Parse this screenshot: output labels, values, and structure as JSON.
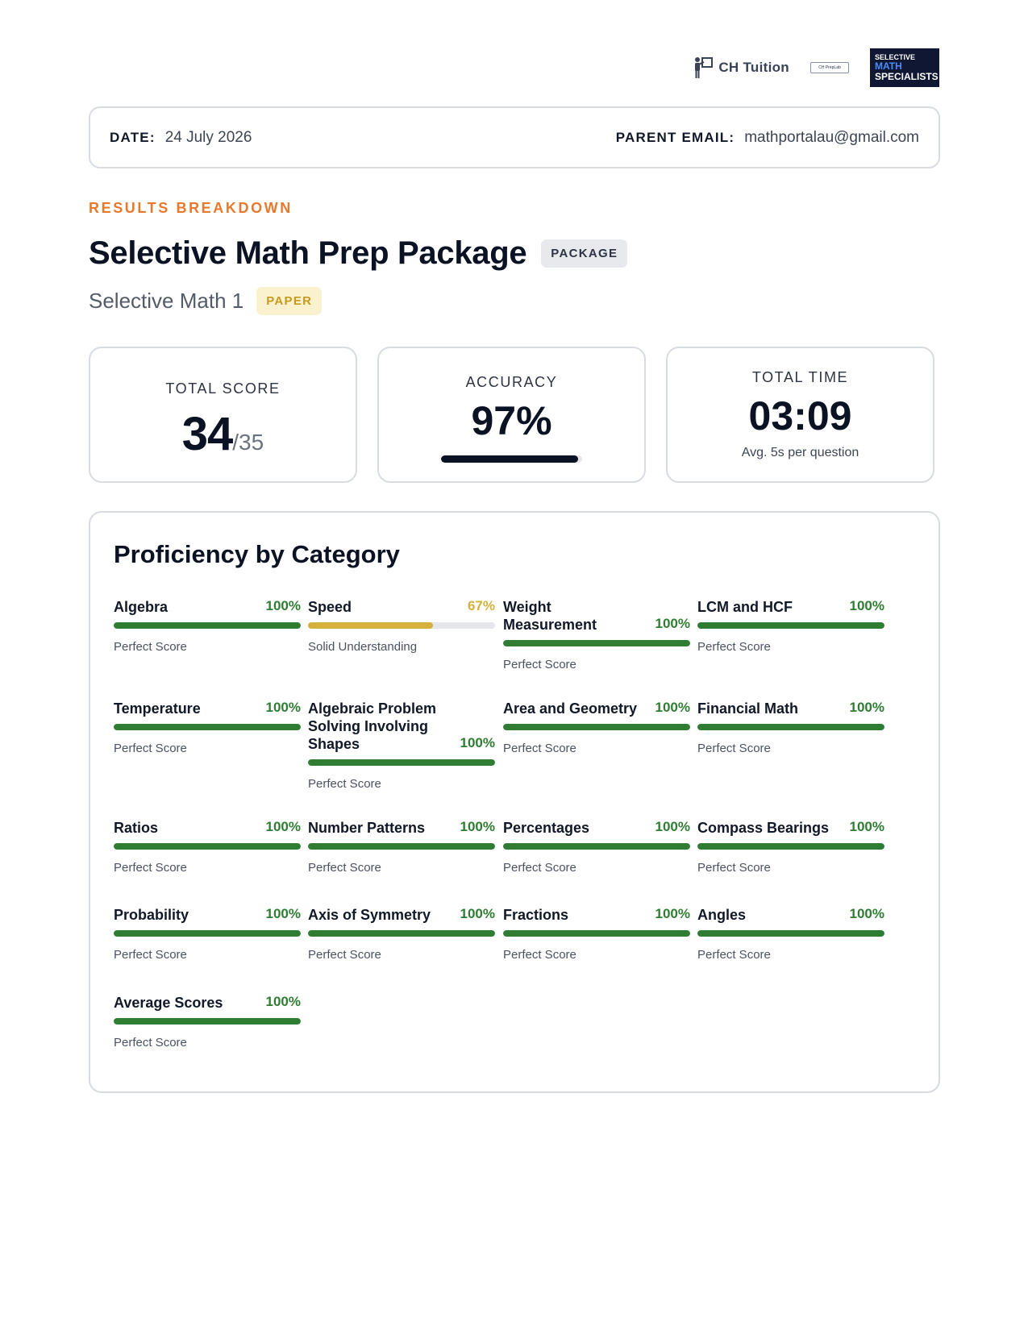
{
  "header": {
    "logos": {
      "ch_tuition": "CH Tuition",
      "prep_lab": "CH PrepLab",
      "sms_line1": "SELECTIVE",
      "sms_line2": "MATH",
      "sms_line3": "SPECIALISTS"
    }
  },
  "info": {
    "date_label": "DATE:",
    "date_value": "24 July 2026",
    "email_label": "PARENT EMAIL:",
    "email_value": "mathportalau@gmail.com"
  },
  "eyebrow": "RESULTS BREAKDOWN",
  "title": "Selective Math Prep Package",
  "title_badge": "PACKAGE",
  "subtitle": "Selective Math 1",
  "subtitle_badge": "PAPER",
  "stats": {
    "score_label": "TOTAL SCORE",
    "score_value": "34",
    "score_total": "/35",
    "accuracy_label": "ACCURACY",
    "accuracy_value": "97%",
    "accuracy_fraction": 0.97,
    "time_label": "TOTAL TIME",
    "time_value": "03:09",
    "time_sub": "Avg. 5s per question"
  },
  "proficiency": {
    "title": "Proficiency by Category",
    "colors": {
      "perfect": "#2e7d32",
      "solid": "#d4b13c"
    },
    "categories": [
      {
        "name": "Algebra",
        "pct": "100%",
        "value": 1.0,
        "status": "Perfect Score",
        "tone": "perfect"
      },
      {
        "name": "Speed",
        "pct": "67%",
        "value": 0.67,
        "status": "Solid Understanding",
        "tone": "solid"
      },
      {
        "name": "Weight Measurement",
        "pct": "100%",
        "value": 1.0,
        "status": "Perfect Score",
        "tone": "perfect"
      },
      {
        "name": "LCM and HCF",
        "pct": "100%",
        "value": 1.0,
        "status": "Perfect Score",
        "tone": "perfect"
      },
      {
        "name": "Temperature",
        "pct": "100%",
        "value": 1.0,
        "status": "Perfect Score",
        "tone": "perfect"
      },
      {
        "name": "Algebraic Problem Solving Involving Shapes",
        "pct": "100%",
        "value": 1.0,
        "status": "Perfect Score",
        "tone": "perfect"
      },
      {
        "name": "Area and Geometry",
        "pct": "100%",
        "value": 1.0,
        "status": "Perfect Score",
        "tone": "perfect"
      },
      {
        "name": "Financial Math",
        "pct": "100%",
        "value": 1.0,
        "status": "Perfect Score",
        "tone": "perfect"
      },
      {
        "name": "Ratios",
        "pct": "100%",
        "value": 1.0,
        "status": "Perfect Score",
        "tone": "perfect"
      },
      {
        "name": "Number Patterns",
        "pct": "100%",
        "value": 1.0,
        "status": "Perfect Score",
        "tone": "perfect"
      },
      {
        "name": "Percentages",
        "pct": "100%",
        "value": 1.0,
        "status": "Perfect Score",
        "tone": "perfect"
      },
      {
        "name": "Compass Bearings",
        "pct": "100%",
        "value": 1.0,
        "status": "Perfect Score",
        "tone": "perfect"
      },
      {
        "name": "Probability",
        "pct": "100%",
        "value": 1.0,
        "status": "Perfect Score",
        "tone": "perfect"
      },
      {
        "name": "Axis of Symmetry",
        "pct": "100%",
        "value": 1.0,
        "status": "Perfect Score",
        "tone": "perfect"
      },
      {
        "name": "Fractions",
        "pct": "100%",
        "value": 1.0,
        "status": "Perfect Score",
        "tone": "perfect"
      },
      {
        "name": "Angles",
        "pct": "100%",
        "value": 1.0,
        "status": "Perfect Score",
        "tone": "perfect"
      },
      {
        "name": "Average Scores",
        "pct": "100%",
        "value": 1.0,
        "status": "Perfect Score",
        "tone": "perfect"
      }
    ]
  }
}
